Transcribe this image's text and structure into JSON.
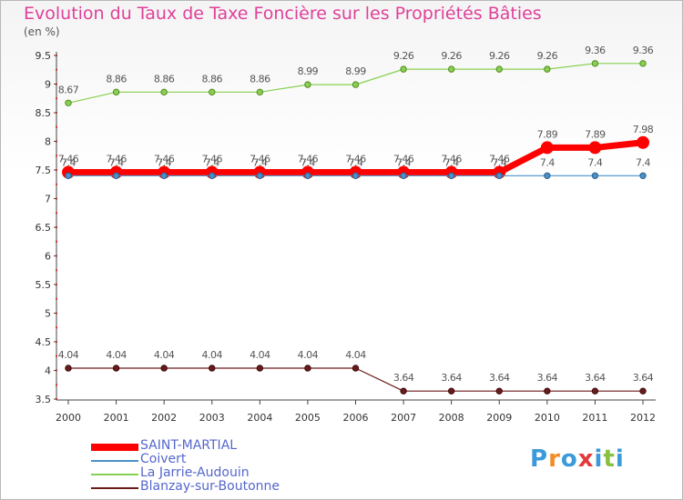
{
  "chart_data": {
    "type": "line",
    "title": "Evolution du Taux de Taxe Foncière sur les Propriétés Bâties",
    "ylabel": "(en %)",
    "xlabel": "",
    "x": [
      "2000",
      "2001",
      "2002",
      "2003",
      "2004",
      "2005",
      "2006",
      "2007",
      "2008",
      "2009",
      "2010",
      "2011",
      "2012"
    ],
    "ylim": [
      3.5,
      9.5
    ],
    "yticks": [
      "3.5",
      "4",
      "4.5",
      "5",
      "5.5",
      "6",
      "6.5",
      "7",
      "7.5",
      "8",
      "8.5",
      "9",
      "9.5"
    ],
    "series": [
      {
        "name": "SAINT-MARTIAL",
        "color": "#ff0000",
        "values": [
          7.46,
          7.46,
          7.46,
          7.46,
          7.46,
          7.46,
          7.46,
          7.46,
          7.46,
          7.46,
          7.89,
          7.89,
          7.98
        ],
        "labels": [
          "7.46",
          "7.46",
          "7.46",
          "7.46",
          "7.46",
          "7.46",
          "7.46",
          "7.46",
          "7.46",
          "7.46",
          "7.89",
          "7.89",
          "7.98"
        ]
      },
      {
        "name": "Coivert",
        "color": "#4a90c8",
        "values": [
          7.4,
          7.4,
          7.4,
          7.4,
          7.4,
          7.4,
          7.4,
          7.4,
          7.4,
          7.4,
          7.4,
          7.4,
          7.4
        ],
        "labels": [
          "7.4",
          "7.4",
          "7.4",
          "7.4",
          "7.4",
          "7.4",
          "7.4",
          "7.4",
          "7.4",
          "7.4",
          "7.4",
          "7.4",
          "7.4"
        ]
      },
      {
        "name": "La Jarrie-Audouin",
        "color": "#88d050",
        "values": [
          8.67,
          8.86,
          8.86,
          8.86,
          8.86,
          8.99,
          8.99,
          9.26,
          9.26,
          9.26,
          9.26,
          9.36,
          9.36
        ],
        "labels": [
          "8.67",
          "8.86",
          "8.86",
          "8.86",
          "8.86",
          "8.99",
          "8.99",
          "9.26",
          "9.26",
          "9.26",
          "9.26",
          "9.36",
          "9.36"
        ]
      },
      {
        "name": "Blanzay-sur-Boutonne",
        "color": "#6b1a1a",
        "values": [
          4.04,
          4.04,
          4.04,
          4.04,
          4.04,
          4.04,
          4.04,
          3.64,
          3.64,
          3.64,
          3.64,
          3.64,
          3.64
        ],
        "labels": [
          "4.04",
          "4.04",
          "4.04",
          "4.04",
          "4.04",
          "4.04",
          "4.04",
          "3.64",
          "3.64",
          "3.64",
          "3.64",
          "3.64",
          "3.64"
        ]
      }
    ],
    "legend_position": "bottom-left",
    "grid": false
  },
  "logo": {
    "letters": [
      "P",
      "r",
      "o",
      "x",
      "i",
      "t",
      "i"
    ],
    "colors": [
      "#3b9ad9",
      "#f28c28",
      "#3b9ad9",
      "#e23a3a",
      "#3b9ad9",
      "#88c040",
      "#3b9ad9"
    ]
  }
}
